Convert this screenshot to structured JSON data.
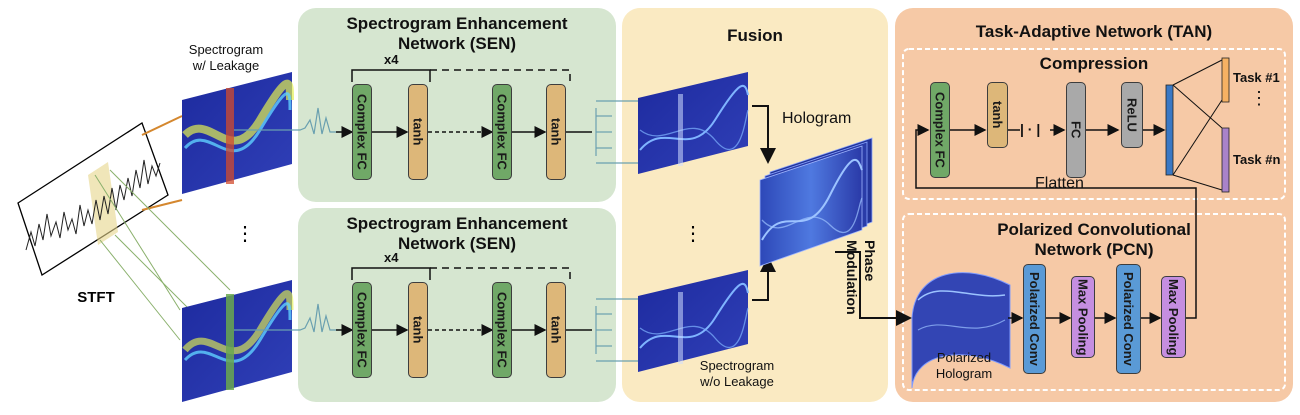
{
  "colors": {
    "sen_panel": "#d6e6d0",
    "fusion_panel": "#faeac2",
    "tan_panel": "#f6c9a6",
    "complex_fc": "#70a867",
    "tanh": "#ddb779",
    "fc_relu": "#a9a9a9",
    "polarized_conv": "#5a9ad6",
    "max_pooling": "#c58ee0",
    "spectrogram": "#2a2f9c",
    "leak_band": "#f08a3a"
  },
  "labels": {
    "stft": "STFT",
    "spectrogram_leak_line1": "Spectrogram",
    "spectrogram_leak_line2": "w/ Leakage",
    "spectrogram_noleak_line1": "Spectrogram",
    "spectrogram_noleak_line2": "w/o Leakage",
    "vdots": "⋮"
  },
  "sen": {
    "title_line1": "Spectrogram Enhancement",
    "title_line2": "Network (SEN)",
    "repeat": "x4",
    "complex_fc": "Complex FC",
    "tanh": "tanh"
  },
  "fusion": {
    "title": "Fusion",
    "hologram": "Hologram",
    "phase_line1": "Phase",
    "phase_line2": "Modulation"
  },
  "tan": {
    "title": "Task-Adaptive Network (TAN)",
    "compression_title": "Compression",
    "complex_fc": "Complex FC",
    "tanh": "tanh",
    "abs": "| · |",
    "fc": "FC",
    "relu": "ReLU",
    "flatten": "Flatten",
    "task1": "Task #1",
    "taskn": "Task #n",
    "dots": "⋮",
    "pcn_title_line1": "Polarized Convolutional",
    "pcn_title_line2": "Network (PCN)",
    "polarized_conv": "Polarized Conv",
    "max_pooling": "Max Pooling",
    "polarized_hologram_line1": "Polarized",
    "polarized_hologram_line2": "Hologram"
  }
}
